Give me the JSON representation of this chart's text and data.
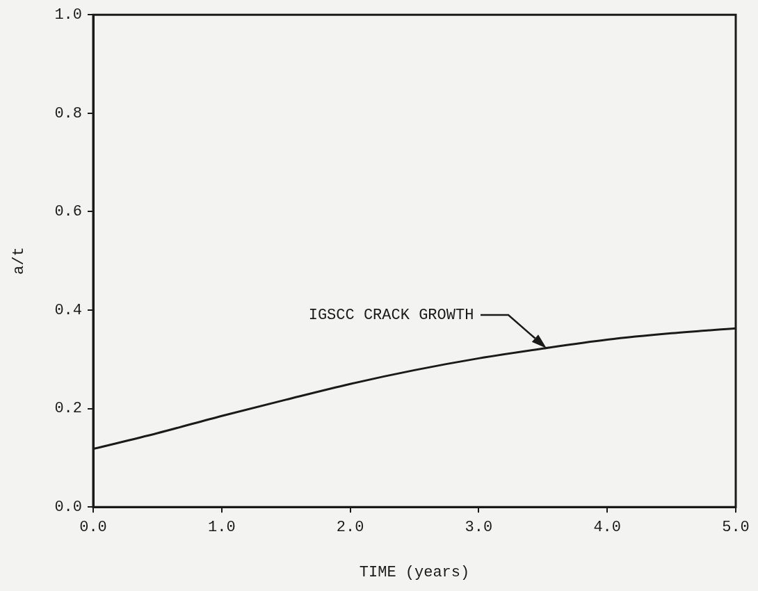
{
  "chart_data": {
    "type": "line",
    "xlabel": "TIME (years)",
    "ylabel": "a/t",
    "x": [
      0,
      0.5,
      1,
      1.5,
      2,
      2.5,
      3,
      3.5,
      4,
      4.5,
      5
    ],
    "series": [
      {
        "color": "#1a1a1a",
        "values": [
          0.118,
          0.15,
          0.185,
          0.218,
          0.25,
          0.278,
          0.302,
          0.322,
          0.34,
          0.353,
          0.363
        ]
      }
    ],
    "xlim": [
      0,
      5
    ],
    "ylim": [
      0,
      1
    ],
    "xticks": [
      {
        "value": 0,
        "label": "0.0"
      },
      {
        "value": 1,
        "label": "1.0"
      },
      {
        "value": 2,
        "label": "2.0"
      },
      {
        "value": 3,
        "label": "3.0"
      },
      {
        "value": 4,
        "label": "4.0"
      },
      {
        "value": 5,
        "label": "5.0"
      }
    ],
    "yticks": [
      {
        "value": 0,
        "label": "0.0"
      },
      {
        "value": 0.2,
        "label": "0.2"
      },
      {
        "value": 0.4,
        "label": "0.4"
      },
      {
        "value": 0.6,
        "label": "0.6"
      },
      {
        "value": 0.8,
        "label": "0.8"
      },
      {
        "value": 1,
        "label": "1.0"
      }
    ],
    "annotations": [
      "IGSCC CRACK GROWTH"
    ],
    "grid": false,
    "legend": false
  }
}
